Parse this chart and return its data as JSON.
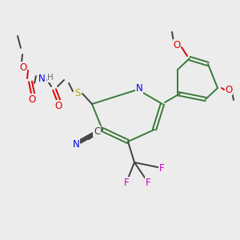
{
  "background_color": "#ececec",
  "bg_color_rgb": [
    0.925,
    0.925,
    0.925
  ],
  "colors": {
    "C": "#404040",
    "N": "#0000ee",
    "O": "#dd0000",
    "F": "#cc00cc",
    "S": "#aaaa00",
    "H": "#707070",
    "bond": "#3a7a3a"
  },
  "ring_color": "#3a7a3a"
}
